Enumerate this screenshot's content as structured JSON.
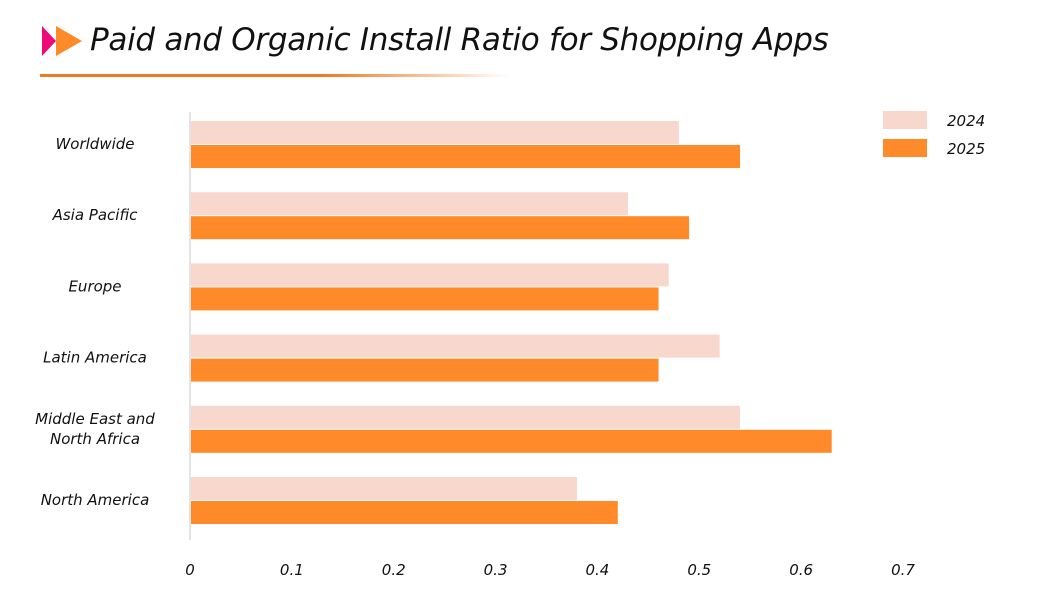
{
  "title": "Paid and Organic Install Ratio for Shopping Apps",
  "colors": {
    "2024": "#f8d8cd",
    "2025": "#fe8a29",
    "logo_pink": "#ee0a78",
    "logo_orange": "#fe8a29"
  },
  "chart_data": {
    "type": "bar",
    "orientation": "horizontal",
    "title": "Paid and Organic Install Ratio for Shopping Apps",
    "categories": [
      [
        "Worldwide"
      ],
      [
        "Asia Pacific"
      ],
      [
        "Europe"
      ],
      [
        "Latin America"
      ],
      [
        "Middle East and",
        "North Africa"
      ],
      [
        "North America"
      ]
    ],
    "series": [
      {
        "name": "2024",
        "values": [
          0.48,
          0.43,
          0.47,
          0.52,
          0.54,
          0.38
        ]
      },
      {
        "name": "2025",
        "values": [
          0.54,
          0.49,
          0.46,
          0.46,
          0.63,
          0.42
        ]
      }
    ],
    "xlim": [
      0,
      0.7
    ],
    "xticks": [
      "0",
      "0.1",
      "0.2",
      "0.3",
      "0.4",
      "0.5",
      "0.6",
      "0.7"
    ],
    "xlabel": "",
    "ylabel": "",
    "grid": false,
    "legend": "top-right"
  }
}
